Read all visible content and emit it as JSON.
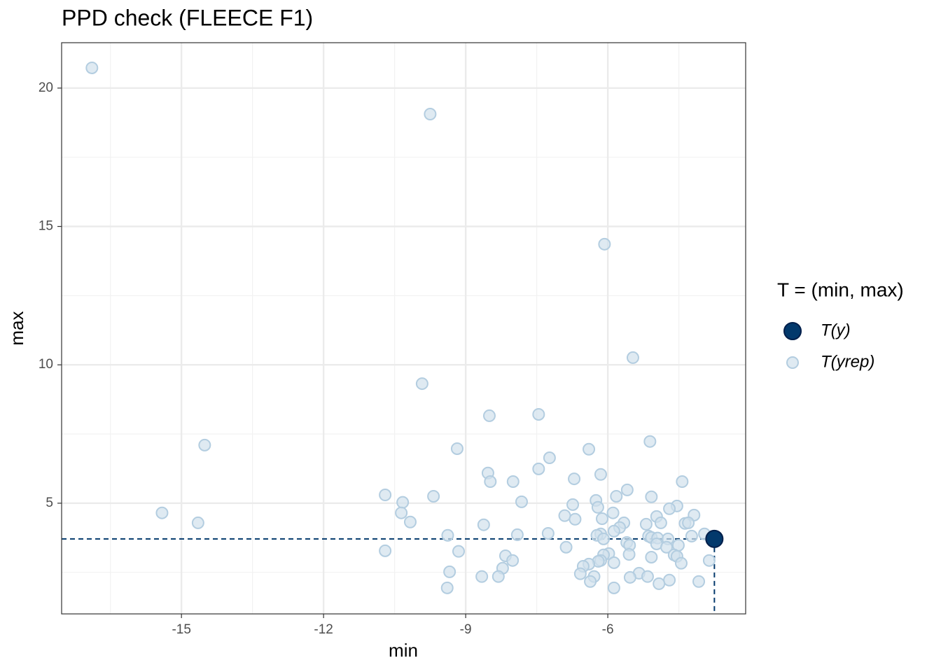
{
  "chart_data": {
    "type": "scatter",
    "title": "PPD check (FLEECE F1)",
    "x_label": "min",
    "y_label": "max",
    "legend_title": "T = (min, max)",
    "xlim": [
      -17.53,
      -3.09
    ],
    "ylim": [
      1.0,
      21.64
    ],
    "xticks": [
      -15,
      -12,
      -9,
      -6
    ],
    "yticks": [
      5,
      10,
      15,
      20
    ],
    "grid": true,
    "legend_position": "right",
    "series": [
      {
        "name": "T(y)",
        "color": "#03396c",
        "x": [
          -3.75
        ],
        "values": [
          3.71
        ]
      },
      {
        "name": "T(yrep)",
        "color": "#d1e1ec",
        "x": [
          -16.89,
          -9.75,
          -6.07,
          -5.47,
          -9.92,
          -7.46,
          -8.5,
          -9.18,
          -14.51,
          -5.11,
          -6.4,
          -7.23,
          -7.46,
          -8.53,
          -6.15,
          -6.71,
          -8.48,
          -8.0,
          -4.43,
          -5.59,
          -10.7,
          -9.68,
          -5.82,
          -5.08,
          -10.33,
          -7.82,
          -6.25,
          -6.74,
          -6.21,
          -4.54,
          -4.7,
          -15.41,
          -10.36,
          -5.89,
          -6.91,
          -4.97,
          -4.18,
          -6.12,
          -6.69,
          -10.17,
          -4.88,
          -14.65,
          -5.66,
          -4.37,
          -4.3,
          -5.19,
          -8.62,
          -5.75,
          -5.87,
          -7.26,
          -3.96,
          -7.91,
          -6.15,
          -9.38,
          -6.23,
          -4.23,
          -5.14,
          -5.08,
          -4.95,
          -4.73,
          -6.09,
          -5.6,
          -5.54,
          -4.97,
          -4.51,
          -4.76,
          -6.88,
          -10.7,
          -9.15,
          -5.55,
          -5.98,
          -6.09,
          -4.6,
          -4.54,
          -8.16,
          -5.08,
          -3.86,
          -8.01,
          -6.15,
          -6.2,
          -5.87,
          -4.45,
          -6.4,
          -6.52,
          -8.22,
          -9.34,
          -5.34,
          -6.58,
          -8.66,
          -8.31,
          -6.29,
          -5.16,
          -5.53,
          -4.7,
          -6.37,
          -4.08,
          -4.92,
          -9.39,
          -5.87
        ],
        "values": [
          20.73,
          19.06,
          14.36,
          10.26,
          9.32,
          8.21,
          8.16,
          6.97,
          7.1,
          7.23,
          6.95,
          6.64,
          6.24,
          6.09,
          6.04,
          5.88,
          5.78,
          5.78,
          5.78,
          5.48,
          5.3,
          5.25,
          5.25,
          5.23,
          5.03,
          5.05,
          5.1,
          4.95,
          4.85,
          4.9,
          4.8,
          4.65,
          4.65,
          4.65,
          4.55,
          4.52,
          4.57,
          4.44,
          4.42,
          4.32,
          4.29,
          4.29,
          4.29,
          4.27,
          4.29,
          4.24,
          4.22,
          4.12,
          3.99,
          3.91,
          3.89,
          3.86,
          3.89,
          3.84,
          3.84,
          3.81,
          3.81,
          3.76,
          3.74,
          3.71,
          3.71,
          3.58,
          3.48,
          3.53,
          3.48,
          3.41,
          3.41,
          3.28,
          3.26,
          3.15,
          3.18,
          3.13,
          3.13,
          3.08,
          3.1,
          3.05,
          2.93,
          2.93,
          2.93,
          2.9,
          2.85,
          2.83,
          2.8,
          2.72,
          2.65,
          2.52,
          2.47,
          2.45,
          2.35,
          2.35,
          2.35,
          2.35,
          2.32,
          2.22,
          2.17,
          2.17,
          2.09,
          1.94,
          1.94
        ]
      }
    ]
  }
}
